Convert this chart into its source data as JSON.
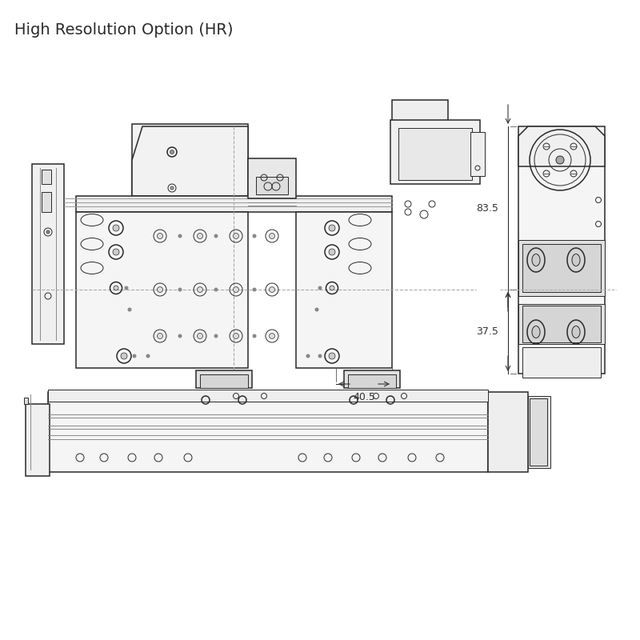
{
  "title": "High Resolution Option (HR)",
  "title_fontsize": 14,
  "bg_color": "#ffffff",
  "line_color": "#2a2a2a",
  "dim_83_5": "83.5",
  "dim_37_5": "37.5",
  "dim_40_5": "40.5"
}
